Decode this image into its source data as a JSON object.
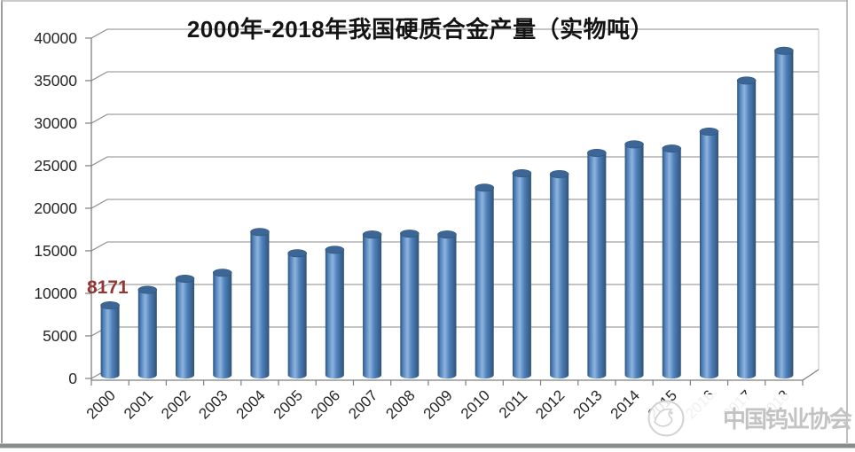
{
  "chart_data": {
    "type": "bar",
    "style": "3d-cylinder",
    "title": "2000年-2018年我国硬质合金产量（实物吨）",
    "xlabel": "",
    "ylabel": "",
    "categories": [
      "2000",
      "2001",
      "2002",
      "2003",
      "2004",
      "2005",
      "2006",
      "2007",
      "2008",
      "2009",
      "2010",
      "2011",
      "2012",
      "2013",
      "2014",
      "2015",
      "2016",
      "2017",
      "2018"
    ],
    "values": [
      8171,
      10000,
      11300,
      12000,
      16800,
      14300,
      14700,
      16500,
      16600,
      16500,
      22000,
      23700,
      23600,
      26100,
      27100,
      26600,
      28600,
      34600,
      38100
    ],
    "ylim": [
      0,
      40000
    ],
    "ytick_step": 5000,
    "yticks": [
      0,
      5000,
      10000,
      15000,
      20000,
      25000,
      30000,
      35000,
      40000
    ],
    "grid": true,
    "legend": "none",
    "annotation": {
      "text": "8171",
      "target_category": "2000"
    }
  },
  "watermark": {
    "text": "中国钨业协会",
    "logo": "tungsten-association-emblem"
  },
  "colors": {
    "bar_body": "#4f81bd",
    "bar_edge_dark": "#2f5377",
    "bar_highlight": "#8fb4dc",
    "bar_top": "#3c6695",
    "gridline": "#8a8a8a",
    "axis": "#7f7f7f",
    "tick_label": "#262626",
    "title_text": "#141414",
    "annotation_red": "#943634",
    "watermark_gray": "#c3c3c3",
    "frame_border": "#9e9e9e",
    "bottom_band": "#878c8d"
  }
}
